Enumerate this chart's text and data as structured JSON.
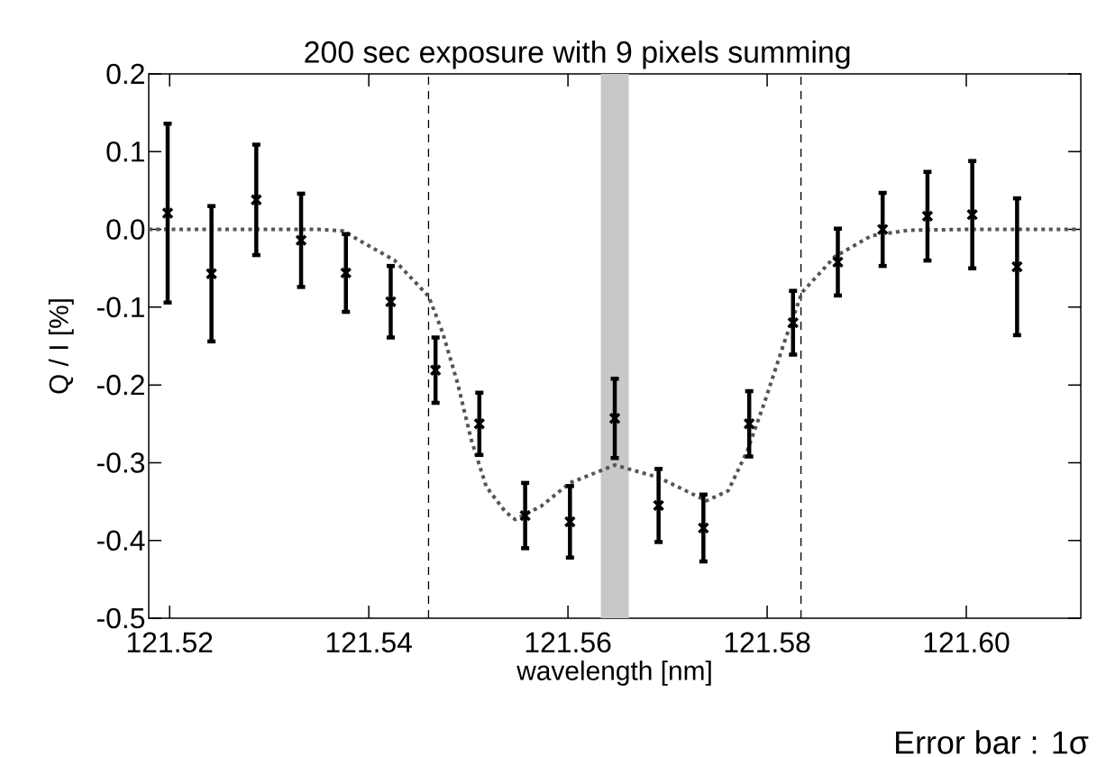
{
  "chart_data": {
    "type": "scatter",
    "title": "200 sec exposure with 9 pixels summing",
    "xlabel": "wavelength [nm]",
    "ylabel": "Q / I [%]",
    "annotations": [
      "Error bar : 1σ"
    ],
    "xlim": [
      121.5179,
      121.6115
    ],
    "ylim": [
      -0.5,
      0.2
    ],
    "xticks": [
      121.52,
      121.54,
      121.56,
      121.58,
      {
        "value": 121.6,
        "label": "121.60"
      }
    ],
    "yticks": [
      -0.5,
      -0.4,
      -0.3,
      -0.2,
      -0.1,
      {
        "value": 0,
        "label": "0.0"
      },
      0.1,
      0.2
    ],
    "series": [
      {
        "marker": "cross",
        "color": "#000000",
        "x": [
          121.5198,
          121.5242,
          121.5287,
          121.5332,
          121.5377,
          121.5422,
          121.5467,
          121.5511,
          121.5557,
          121.5602,
          121.5647,
          121.5691,
          121.5736,
          121.5782,
          121.5826,
          121.5871,
          121.5916,
          121.5961,
          121.6006,
          121.6051
        ],
        "values": [
          0.021,
          -0.057,
          0.038,
          -0.014,
          -0.056,
          -0.093,
          -0.181,
          -0.25,
          -0.368,
          -0.376,
          -0.243,
          -0.355,
          -0.384,
          -0.25,
          -0.12,
          -0.042,
          0,
          0.017,
          0.019,
          -0.048
        ],
        "errors": [
          0.115,
          0.087,
          0.071,
          0.06,
          0.05,
          0.046,
          0.042,
          0.04,
          0.042,
          0.046,
          0.051,
          0.047,
          0.043,
          0.042,
          0.041,
          0.043,
          0.047,
          0.057,
          0.069,
          0.088
        ]
      },
      {
        "type": "line",
        "color": "#555555",
        "line_style": "dotted",
        "x": [
          121.5179,
          121.53,
          121.535,
          121.5374,
          121.5426,
          121.546,
          121.5474,
          121.5489,
          121.5503,
          121.5518,
          121.5537,
          121.5547,
          121.5573,
          121.5602,
          121.5647,
          121.5691,
          121.5739,
          121.5761,
          121.578,
          121.5798,
          121.5817,
          121.5835,
          121.5868,
          121.5905,
          121.5942,
          121.6,
          121.6115
        ],
        "values": [
          0,
          0,
          0,
          -0.002,
          -0.04,
          -0.086,
          -0.132,
          -0.197,
          -0.271,
          -0.331,
          -0.363,
          -0.373,
          -0.356,
          -0.326,
          -0.303,
          -0.319,
          -0.349,
          -0.336,
          -0.285,
          -0.22,
          -0.146,
          -0.081,
          -0.035,
          -0.008,
          -0.001,
          0,
          0
        ]
      }
    ],
    "ref_lines": [
      {
        "axis": "x",
        "value": 121.546,
        "line_style": "dashed",
        "color": "#000000"
      },
      {
        "axis": "x",
        "value": 121.5834,
        "line_style": "dashed",
        "color": "#000000"
      }
    ],
    "bands": [
      {
        "axis": "x",
        "from": 121.5633,
        "to": 121.5661,
        "color": "#c8c8c8"
      }
    ]
  }
}
